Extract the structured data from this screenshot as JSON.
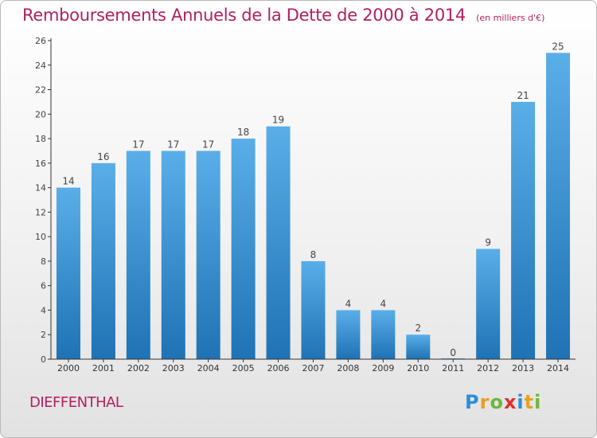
{
  "title": "Remboursements Annuels de la Dette de 2000 à 2014",
  "unit_note": "(en milliers d'€)",
  "city": "DIEFFENTHAL",
  "brand": {
    "letters": [
      "P",
      "r",
      "o",
      "x",
      "i",
      "t",
      "i"
    ],
    "colors": [
      "#2a8ed8",
      "#e8a020",
      "#6cb83a",
      "#e0302c",
      "#2a8ed8",
      "#e8a020",
      "#6cb83a"
    ]
  },
  "colors": {
    "bar_top": "#5aaee8",
    "bar_bottom": "#1f72b4",
    "title": "#b02060",
    "axis": "#333333"
  },
  "chart_data": {
    "type": "bar",
    "categories": [
      "2000",
      "2001",
      "2002",
      "2003",
      "2004",
      "2005",
      "2006",
      "2007",
      "2008",
      "2009",
      "2010",
      "2011",
      "2012",
      "2013",
      "2014"
    ],
    "values": [
      14,
      16,
      17,
      17,
      17,
      18,
      19,
      8,
      4,
      4,
      2,
      0,
      9,
      21,
      25
    ],
    "ylim": [
      0,
      26
    ],
    "yticks": [
      0,
      2,
      4,
      6,
      8,
      10,
      12,
      14,
      16,
      18,
      20,
      22,
      24,
      26
    ],
    "grid": false,
    "data_labels": true
  }
}
